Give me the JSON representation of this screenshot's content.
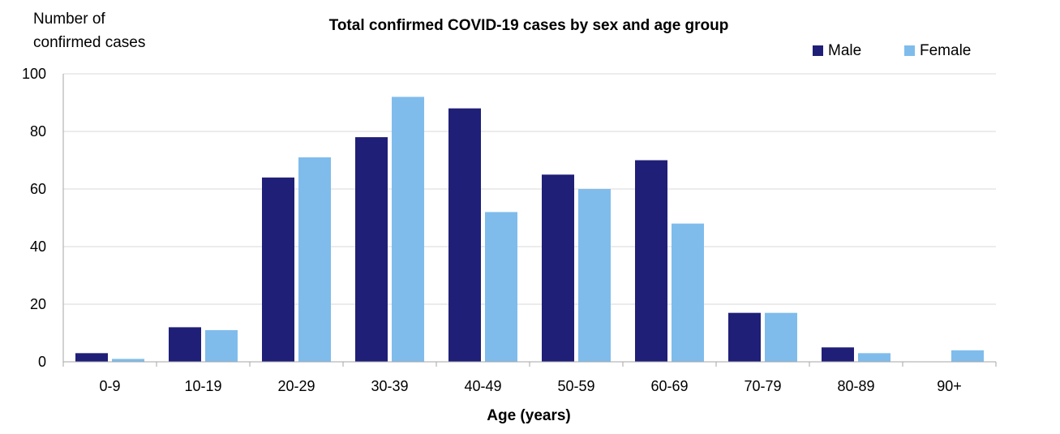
{
  "chart_data": {
    "type": "bar",
    "title": "Total confirmed COVID-19 cases by sex and age group",
    "ylabel_lines": [
      "Number of",
      "confirmed cases"
    ],
    "xlabel": "Age (years)",
    "categories": [
      "0-9",
      "10-19",
      "20-29",
      "30-39",
      "40-49",
      "50-59",
      "60-69",
      "70-79",
      "80-89",
      "90+"
    ],
    "series": [
      {
        "name": "Male",
        "color": "#1f1f78",
        "values": [
          3,
          12,
          64,
          78,
          88,
          65,
          70,
          17,
          5,
          0
        ]
      },
      {
        "name": "Female",
        "color": "#7fbcec",
        "values": [
          1,
          11,
          71,
          92,
          52,
          60,
          48,
          17,
          3,
          4
        ]
      }
    ],
    "ylim": [
      0,
      100
    ],
    "yticks": [
      0,
      20,
      40,
      60,
      80,
      100
    ],
    "grid": true,
    "legend_position": "top-right"
  }
}
